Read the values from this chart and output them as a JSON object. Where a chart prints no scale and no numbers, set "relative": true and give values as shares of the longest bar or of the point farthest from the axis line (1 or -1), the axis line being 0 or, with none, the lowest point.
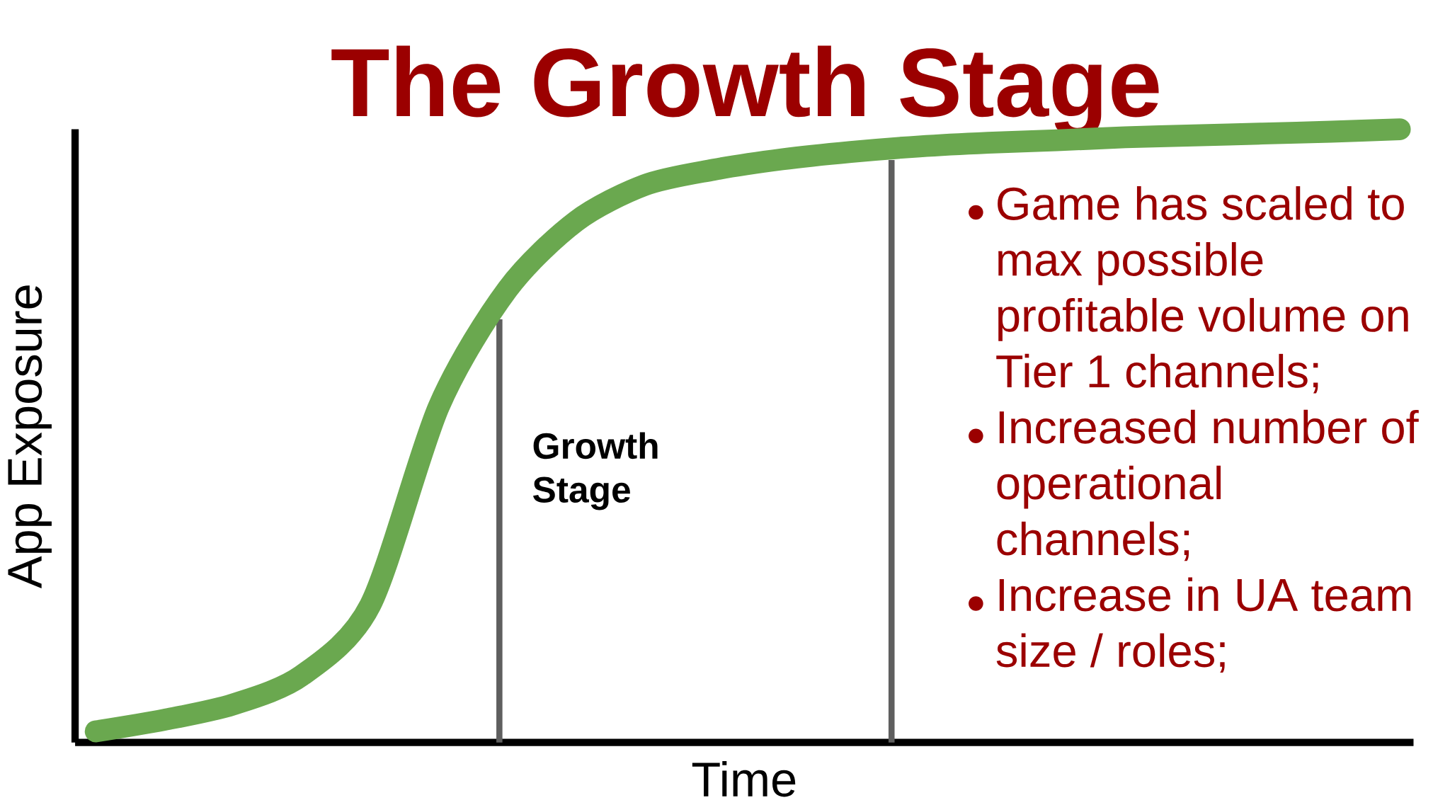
{
  "chart_data": {
    "type": "line",
    "relative": true,
    "title": "The Growth Stage",
    "xlabel": "Time",
    "ylabel": "App Exposure",
    "categories": [
      null,
      null,
      null,
      null,
      null,
      null,
      null,
      null,
      null,
      null,
      null,
      null,
      null,
      null,
      null,
      null,
      null,
      null,
      null,
      null
    ],
    "series": [
      {
        "color": "#6aa84f",
        "values": [
          0.018,
          0.037,
          0.062,
          0.109,
          0.224,
          0.548,
          0.739,
          0.85,
          0.909,
          0.934,
          0.951,
          0.963,
          0.972,
          0.978,
          0.982,
          0.987,
          0.99,
          0.993,
          0.996,
          1
        ]
      }
    ],
    "annotations": [
      "Growth Stage",
      "Game has scaled to max possible profitable volume on Tier 1 channels;",
      "Increased number of operational channels;",
      "Increase in UA team size / roles;"
    ],
    "marker": "none",
    "line_style": "solid"
  }
}
